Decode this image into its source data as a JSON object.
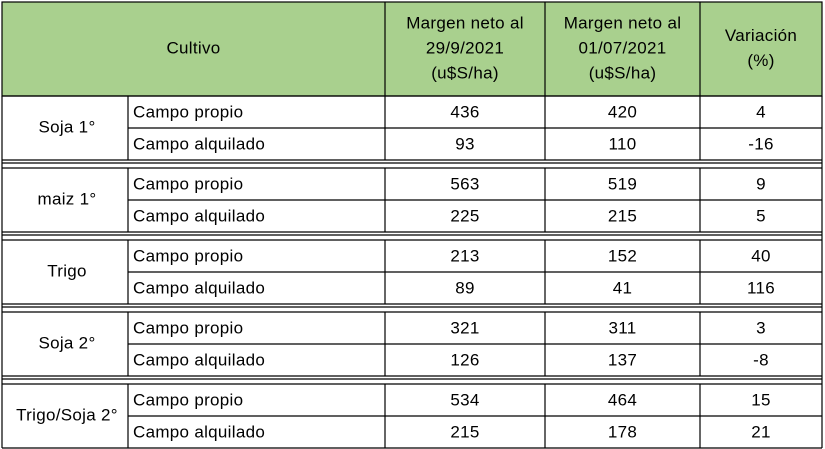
{
  "header": {
    "cultivo": "Cultivo",
    "col_a": [
      "Margen neto al",
      "29/9/2021",
      "(u$S/ha)"
    ],
    "col_b": [
      "Margen neto al",
      "01/07/2021",
      "(u$S/ha)"
    ],
    "variacion": [
      "Variación",
      "(%)"
    ]
  },
  "groups": [
    {
      "crop": "Soja 1°",
      "rows": [
        [
          "Campo propio",
          436,
          420,
          4
        ],
        [
          "Campo alquilado",
          93,
          110,
          -16
        ]
      ]
    },
    {
      "crop": "maiz 1°",
      "rows": [
        [
          "Campo propio",
          563,
          519,
          9
        ],
        [
          "Campo alquilado",
          225,
          215,
          5
        ]
      ]
    },
    {
      "crop": "Trigo",
      "rows": [
        [
          "Campo propio",
          213,
          152,
          40
        ],
        [
          "Campo alquilado",
          89,
          41,
          116
        ]
      ]
    },
    {
      "crop": "Soja 2°",
      "rows": [
        [
          "Campo propio",
          321,
          311,
          3
        ],
        [
          "Campo alquilado",
          126,
          137,
          -8
        ]
      ]
    },
    {
      "crop": "Trigo/Soja 2°",
      "rows": [
        [
          "Campo propio",
          534,
          464,
          15
        ],
        [
          "Campo alquilado",
          215,
          178,
          21
        ]
      ]
    }
  ]
}
